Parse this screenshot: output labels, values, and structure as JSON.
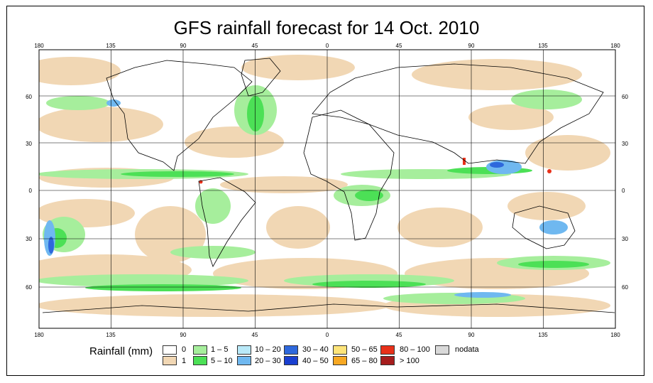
{
  "title": "GFS rainfall forecast for 14 Oct. 2010",
  "lon_labels_top": [
    "180",
    "135",
    "90",
    "45",
    "0",
    "45",
    "90",
    "135",
    "180"
  ],
  "lon_labels_bottom": [
    "180",
    "135",
    "90",
    "45",
    "0",
    "45",
    "90",
    "135",
    "180"
  ],
  "lat_labels_left": [
    "60",
    "30",
    "0",
    "30",
    "60"
  ],
  "lat_labels_right": [
    "60",
    "30",
    "0",
    "30",
    "60"
  ],
  "legend": {
    "title": "Rainfall (mm)",
    "items": [
      {
        "label": "0",
        "color": "#ffffff"
      },
      {
        "label": "1",
        "color": "#f1d7b4"
      },
      {
        "label": "1 – 5",
        "color": "#a6ee9c"
      },
      {
        "label": "5 – 10",
        "color": "#4ce056"
      },
      {
        "label": "10 – 20",
        "color": "#b9e9f8"
      },
      {
        "label": "20 – 30",
        "color": "#6fb8f0"
      },
      {
        "label": "30 – 40",
        "color": "#2e68dc"
      },
      {
        "label": "40 – 50",
        "color": "#1a3fd0"
      },
      {
        "label": "50 – 65",
        "color": "#fde47a"
      },
      {
        "label": "65 – 80",
        "color": "#f7a823"
      },
      {
        "label": "80 – 100",
        "color": "#e8311a"
      },
      {
        "label": "> 100",
        "color": "#a61d1d"
      },
      {
        "label": "nodata",
        "color": "#d9d9d9"
      }
    ]
  }
}
